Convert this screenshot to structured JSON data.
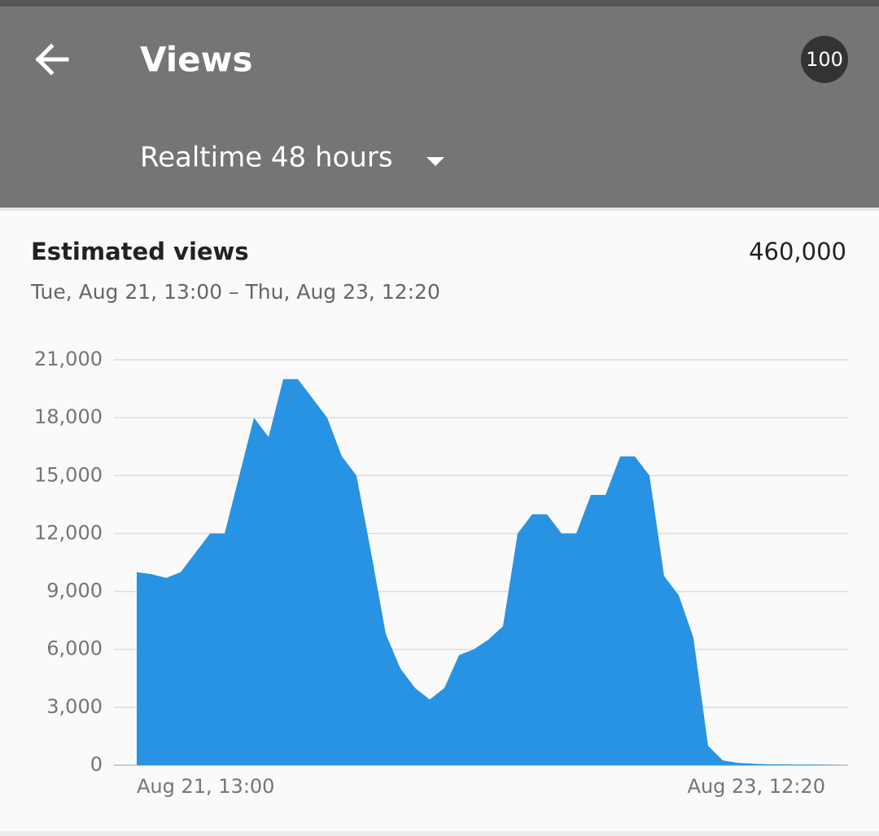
{
  "header": {
    "title": "Views",
    "badge": "100",
    "period": "Realtime 48 hours"
  },
  "card": {
    "title": "Estimated views",
    "total": "460,000",
    "range": "Tue, Aug 21, 13:00 – Thu, Aug 23, 12:20"
  },
  "chart_data": {
    "type": "area",
    "color": "#2893e3",
    "grid": true,
    "categories": [
      "Aug 21, 13:00",
      null,
      null,
      null,
      null,
      null,
      null,
      null,
      null,
      null,
      null,
      null,
      null,
      null,
      null,
      null,
      null,
      null,
      null,
      null,
      null,
      null,
      null,
      null,
      null,
      null,
      null,
      null,
      null,
      null,
      null,
      null,
      null,
      null,
      null,
      null,
      null,
      null,
      null,
      null,
      null,
      null,
      null,
      null,
      null,
      null,
      null,
      null,
      "Aug 23, 12:20"
    ],
    "values": [
      10000,
      9900,
      9700,
      10000,
      11000,
      12000,
      12000,
      15000,
      18000,
      17000,
      20000,
      20000,
      19000,
      18000,
      16000,
      15000,
      11000,
      6800,
      5000,
      4000,
      3400,
      4000,
      5700,
      6000,
      6500,
      7200,
      12000,
      13000,
      13000,
      12000,
      12000,
      14000,
      14000,
      16000,
      16000,
      15000,
      9800,
      8800,
      6600,
      1000,
      250,
      120,
      80,
      50,
      40,
      30,
      30,
      20,
      10
    ],
    "ylim": [
      0,
      21000
    ],
    "yticks": [
      0,
      {
        "value": 3000,
        "label": "3,000"
      },
      {
        "value": 6000,
        "label": "6,000"
      },
      {
        "value": 9000,
        "label": "9,000"
      },
      {
        "value": 12000,
        "label": "12,000"
      },
      {
        "value": 15000,
        "label": "15,000"
      },
      {
        "value": 18000,
        "label": "18,000"
      },
      {
        "value": 21000,
        "label": "21,000"
      }
    ]
  }
}
